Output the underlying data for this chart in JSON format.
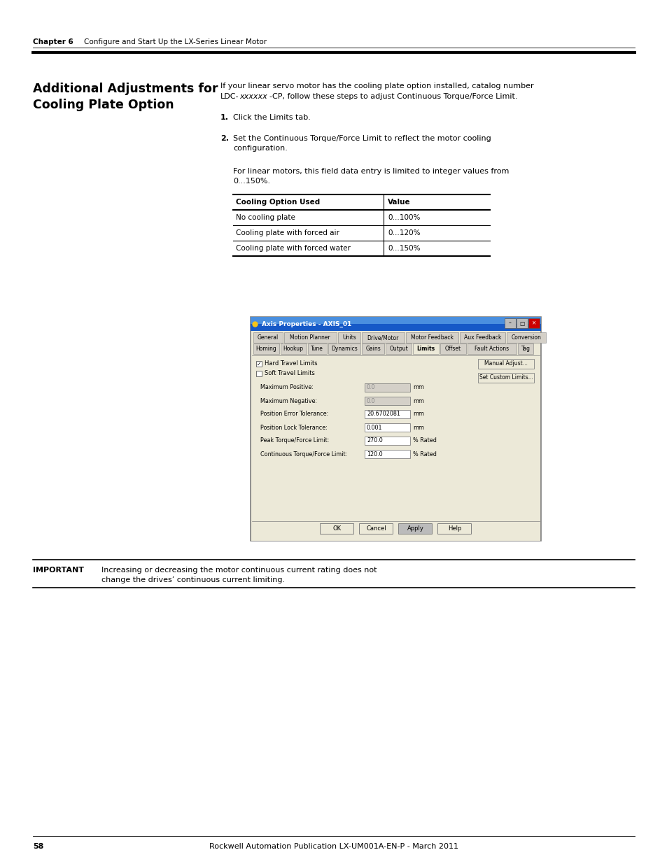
{
  "page_bg": "#ffffff",
  "chapter_label": "Chapter 6",
  "chapter_text": "Configure and Start Up the LX-Series Linear Motor",
  "section_title_line1": "Additional Adjustments for",
  "section_title_line2": "Cooling Plate Option",
  "intro_text_line1": "If your linear servo motor has the cooling plate option installed, catalog number",
  "intro_text_line2": "LDC-xxxxxx-CP, follow these steps to adjust Continuous Torque/Force Limit.",
  "intro_italic": "xxxxxx",
  "step1": "Click the Limits tab.",
  "step2_line1": "Set the Continuous Torque/Force Limit to reflect the motor cooling",
  "step2_line2": "configuration.",
  "note_line1": "For linear motors, this field data entry is limited to integer values from",
  "note_line2": "0...150%.",
  "table_header_col1": "Cooling Option Used",
  "table_header_col2": "Value",
  "table_rows": [
    [
      "No cooling plate",
      "0…100%"
    ],
    [
      "Cooling plate with forced air",
      "0…120%"
    ],
    [
      "Cooling plate with forced water",
      "0…150%"
    ]
  ],
  "important_label": "IMPORTANT",
  "important_text_line1": "Increasing or decreasing the motor continuous current rating does not",
  "important_text_line2": "change the drives’ continuous current limiting.",
  "footer_page": "58",
  "footer_pub": "Rockwell Automation Publication LX-UM001A-EN-P - March 2011",
  "dialog_title": "Axis Properties - AXIS_01",
  "dialog_tabs_row1": [
    "General",
    "Motion Planner",
    "Units",
    "Drive/Motor",
    "Motor Feedback",
    "Aux Feedback",
    "Conversion"
  ],
  "dialog_tabs_row2": [
    "Homing",
    "Hookup",
    "Tune",
    "Dynamics",
    "Gains",
    "Output",
    "Limits",
    "Offset",
    "Fault Actions",
    "Tag"
  ],
  "checkbox1_checked": true,
  "checkbox1_label": "Hard Travel Limits",
  "checkbox2_checked": false,
  "checkbox2_label": "Soft Travel Limits",
  "btn_manual": "Manual Adjust...",
  "btn_custom": "Set Custom Limits...",
  "fields": [
    [
      "Maximum Positive:",
      "0.0",
      "mm",
      true
    ],
    [
      "Maximum Negative:",
      "0.0",
      "mm",
      true
    ],
    [
      "Position Error Tolerance:",
      "20.6702081",
      "mm",
      false
    ],
    [
      "Position Lock Tolerance:",
      "0.001",
      "mm",
      false
    ],
    [
      "Peak Torque/Force Limit:",
      "270.0",
      "% Rated",
      false
    ],
    [
      "Continuous Torque/Force Limit:",
      "120.0",
      "% Rated",
      false
    ]
  ],
  "dialog_buttons": [
    "OK",
    "Cancel",
    "Apply",
    "Help"
  ],
  "title_bar_color": "#1659c7",
  "title_bar_color2": "#4a8fdf",
  "dialog_bg": "#d4d0c8",
  "content_bg": "#ece9d8",
  "tab_bg": "#d4d0c8",
  "active_tab_bg": "#ece9d8",
  "input_bg_active": "#ffffff",
  "input_bg_disabled": "#d4d0c8",
  "btn_bg": "#ece9d8"
}
